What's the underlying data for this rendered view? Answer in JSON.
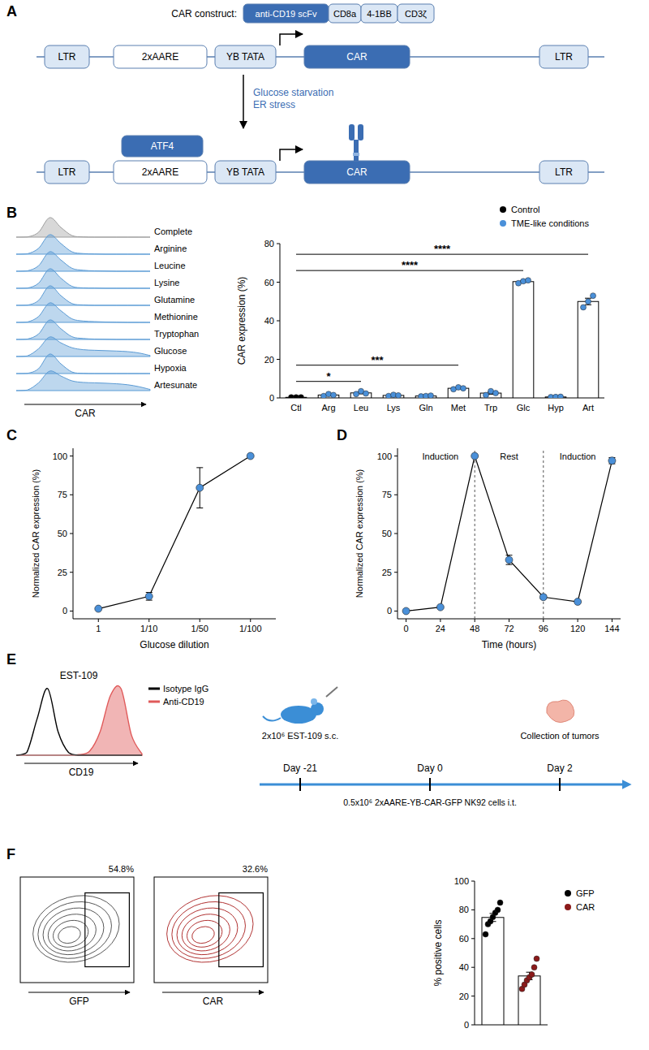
{
  "panel_labels": [
    "A",
    "B",
    "C",
    "D",
    "E",
    "F"
  ],
  "diagram": {
    "construct_label": "CAR construct:",
    "construct_domains": [
      "anti-CD19 scFv",
      "CD8a",
      "4-1BB",
      "CD3ζ"
    ],
    "top_row": [
      "LTR",
      "2xAARE",
      "YB TATA",
      "CAR",
      "LTR"
    ],
    "stimulus": [
      "Glucose starvation",
      "ER stress"
    ],
    "factor": "ATF4",
    "bottom_row": [
      "LTR",
      "2xAARE",
      "YB TATA",
      "CAR",
      "LTR"
    ]
  },
  "chart_data": [
    {
      "type": "density",
      "xlabel": "CAR",
      "x": [
        0,
        1,
        2,
        3,
        4,
        5,
        6,
        7,
        8,
        9,
        10,
        11,
        12
      ],
      "xlim": [
        0,
        12
      ],
      "ylim": [
        0,
        100
      ],
      "tick_labels": false,
      "series": [
        {
          "name": "Complete",
          "color": "#9e9e9e",
          "values": [
            0,
            1,
            25,
            100,
            50,
            8,
            1,
            0,
            0,
            0,
            0,
            0,
            0
          ]
        },
        {
          "name": "Arginine",
          "color": "#5b9bd5",
          "values": [
            0,
            2,
            30,
            100,
            55,
            12,
            3,
            1,
            0,
            0,
            0,
            0,
            0
          ]
        },
        {
          "name": "Leucine",
          "color": "#5b9bd5",
          "values": [
            0,
            2,
            28,
            100,
            58,
            15,
            5,
            2,
            1,
            0,
            0,
            0,
            0
          ]
        },
        {
          "name": "Lysine",
          "color": "#5b9bd5",
          "values": [
            0,
            1,
            26,
            100,
            52,
            10,
            2,
            1,
            0,
            0,
            0,
            0,
            0
          ]
        },
        {
          "name": "Glutamine",
          "color": "#5b9bd5",
          "values": [
            0,
            1,
            25,
            100,
            50,
            9,
            2,
            0,
            0,
            0,
            0,
            0,
            0
          ]
        },
        {
          "name": "Methionine",
          "color": "#5b9bd5",
          "values": [
            0,
            2,
            30,
            100,
            60,
            18,
            7,
            4,
            2,
            1,
            0,
            0,
            0
          ]
        },
        {
          "name": "Tryptophan",
          "color": "#5b9bd5",
          "values": [
            0,
            2,
            28,
            100,
            55,
            14,
            5,
            2,
            1,
            0,
            0,
            0,
            0
          ]
        },
        {
          "name": "Glucose",
          "color": "#5b9bd5",
          "values": [
            0,
            3,
            40,
            100,
            70,
            45,
            35,
            32,
            30,
            28,
            25,
            18,
            5
          ]
        },
        {
          "name": "Hypoxia",
          "color": "#5b9bd5",
          "values": [
            0,
            1,
            25,
            100,
            50,
            8,
            1,
            0,
            0,
            0,
            0,
            0,
            0
          ]
        },
        {
          "name": "Artesunate",
          "color": "#5b9bd5",
          "values": [
            0,
            3,
            40,
            100,
            75,
            50,
            42,
            40,
            38,
            35,
            30,
            20,
            6
          ]
        }
      ]
    },
    {
      "type": "bar",
      "categories": [
        "Ctl",
        "Arg",
        "Leu",
        "Lys",
        "Gln",
        "Met",
        "Trp",
        "Glc",
        "Hyp",
        "Art"
      ],
      "values": [
        0.3,
        1.5,
        2.6,
        1.3,
        1.0,
        5.0,
        2.5,
        60.3,
        0.5,
        50.0
      ],
      "errors": [
        0,
        0.3,
        0.5,
        0.2,
        0.1,
        0.3,
        0.6,
        0.4,
        0.1,
        1.7
      ],
      "points": [
        [
          0.3,
          0.3,
          0.3
        ],
        [
          1.0,
          2.0,
          1.5
        ],
        [
          2.0,
          3.5,
          2.3
        ],
        [
          1.0,
          1.6,
          1.3
        ],
        [
          0.8,
          1.0,
          1.2
        ],
        [
          4.5,
          5.5,
          5.0
        ],
        [
          1.5,
          3.5,
          2.5
        ],
        [
          59.5,
          60.5,
          61.0
        ],
        [
          0.4,
          0.5,
          0.6
        ],
        [
          47.0,
          50.0,
          53.0
        ]
      ],
      "colors": [
        "#000000",
        "#4a90d9",
        "#4a90d9",
        "#4a90d9",
        "#4a90d9",
        "#4a90d9",
        "#4a90d9",
        "#4a90d9",
        "#4a90d9",
        "#4a90d9"
      ],
      "legend_items": [
        {
          "name": "Control",
          "color": "#000000"
        },
        {
          "name": "TME-like conditions",
          "color": "#4a90d9"
        }
      ],
      "legend": "top-right",
      "significance": [
        {
          "from": "Ctl",
          "to": "Leu",
          "label": "*"
        },
        {
          "from": "Ctl",
          "to": "Met",
          "label": "***"
        },
        {
          "from": "Ctl",
          "to": "Glc",
          "label": "****"
        },
        {
          "from": "Ctl",
          "to": "Art",
          "label": "****"
        }
      ],
      "ylabel": "CAR expression (%)",
      "ylim": [
        0,
        80
      ],
      "yticks": [
        0,
        20,
        40,
        60,
        80
      ]
    },
    {
      "type": "line",
      "categories": [
        "1",
        "1/10",
        "1/50",
        "1/100"
      ],
      "values": [
        1.5,
        9.5,
        79.5,
        100
      ],
      "errors": [
        0.5,
        2.5,
        13,
        0
      ],
      "xlabel": "Glucose dilution",
      "ylabel": "Normalized CAR expression (%)",
      "ylim": [
        -5,
        105
      ],
      "yticks": [
        0,
        25,
        50,
        75,
        100
      ],
      "color": "#4a90d9",
      "marker": "circle"
    },
    {
      "type": "line",
      "x": [
        0,
        24,
        48,
        72,
        96,
        120,
        144
      ],
      "values": [
        0,
        2.5,
        100,
        33,
        9,
        6,
        97
      ],
      "errors": [
        0,
        0.5,
        0,
        3,
        1.2,
        0.5,
        2
      ],
      "xlabel": "Time (hours)",
      "ylabel": "Normalized CAR expression (%)",
      "xlim": [
        -6,
        150
      ],
      "xticks": [
        0,
        24,
        48,
        72,
        96,
        120,
        144
      ],
      "ylim": [
        -5,
        105
      ],
      "yticks": [
        0,
        25,
        50,
        75,
        100
      ],
      "annotations": [
        "Induction",
        "Rest",
        "Induction"
      ],
      "phase_boundaries": [
        48,
        96
      ],
      "color": "#4a90d9",
      "marker": "circle"
    },
    {
      "type": "density",
      "title": "EST-109",
      "xlabel": "CD19",
      "x": [
        0,
        1,
        2,
        3,
        4,
        5,
        6,
        7,
        8,
        9,
        10,
        11,
        12
      ],
      "xlim": [
        0,
        12
      ],
      "ylim": [
        0,
        100
      ],
      "tick_labels": false,
      "legend": "right",
      "series": [
        {
          "name": "Isotype IgG",
          "color": "#000000",
          "values": [
            0,
            4,
            55,
            100,
            35,
            4,
            0,
            0,
            0,
            0,
            0,
            0,
            0
          ]
        },
        {
          "name": "Anti-CD19",
          "color": "#e05a5a",
          "values": [
            0,
            0,
            0,
            0,
            0,
            0,
            1,
            6,
            35,
            90,
            100,
            30,
            2
          ]
        }
      ]
    },
    {
      "type": "bar",
      "categories": [
        null,
        null
      ],
      "values": [
        74.7,
        34.0
      ],
      "errors": [
        2.8,
        2.6
      ],
      "points": [
        [
          63,
          70,
          72,
          75,
          78,
          80,
          85
        ],
        [
          25,
          28,
          31,
          33,
          35,
          40,
          46
        ]
      ],
      "colors": [
        "#000000",
        "#8b1a1a"
      ],
      "legend_items": [
        {
          "name": "GFP",
          "color": "#000000"
        },
        {
          "name": "CAR",
          "color": "#8b1a1a"
        }
      ],
      "legend": "right",
      "ylabel": "% positive cells",
      "ylim": [
        0,
        100
      ],
      "yticks": [
        0,
        20,
        40,
        60,
        80,
        100
      ]
    }
  ],
  "timeline": {
    "events": [
      {
        "day": "Day -21",
        "note": "2x10⁶ EST-109 s.c."
      },
      {
        "day": "Day 0",
        "note": "0.5x10⁶ 2xAARE-YB-CAR-GFP NK92 cells i.t."
      },
      {
        "day": "Day 2",
        "note": "Collection of tumors"
      }
    ]
  },
  "flow_plots": [
    {
      "xlabel": "GFP",
      "gate_label": "54.8%",
      "color": "#555555"
    },
    {
      "xlabel": "CAR",
      "gate_label": "32.6%",
      "color": "#b03030"
    }
  ]
}
